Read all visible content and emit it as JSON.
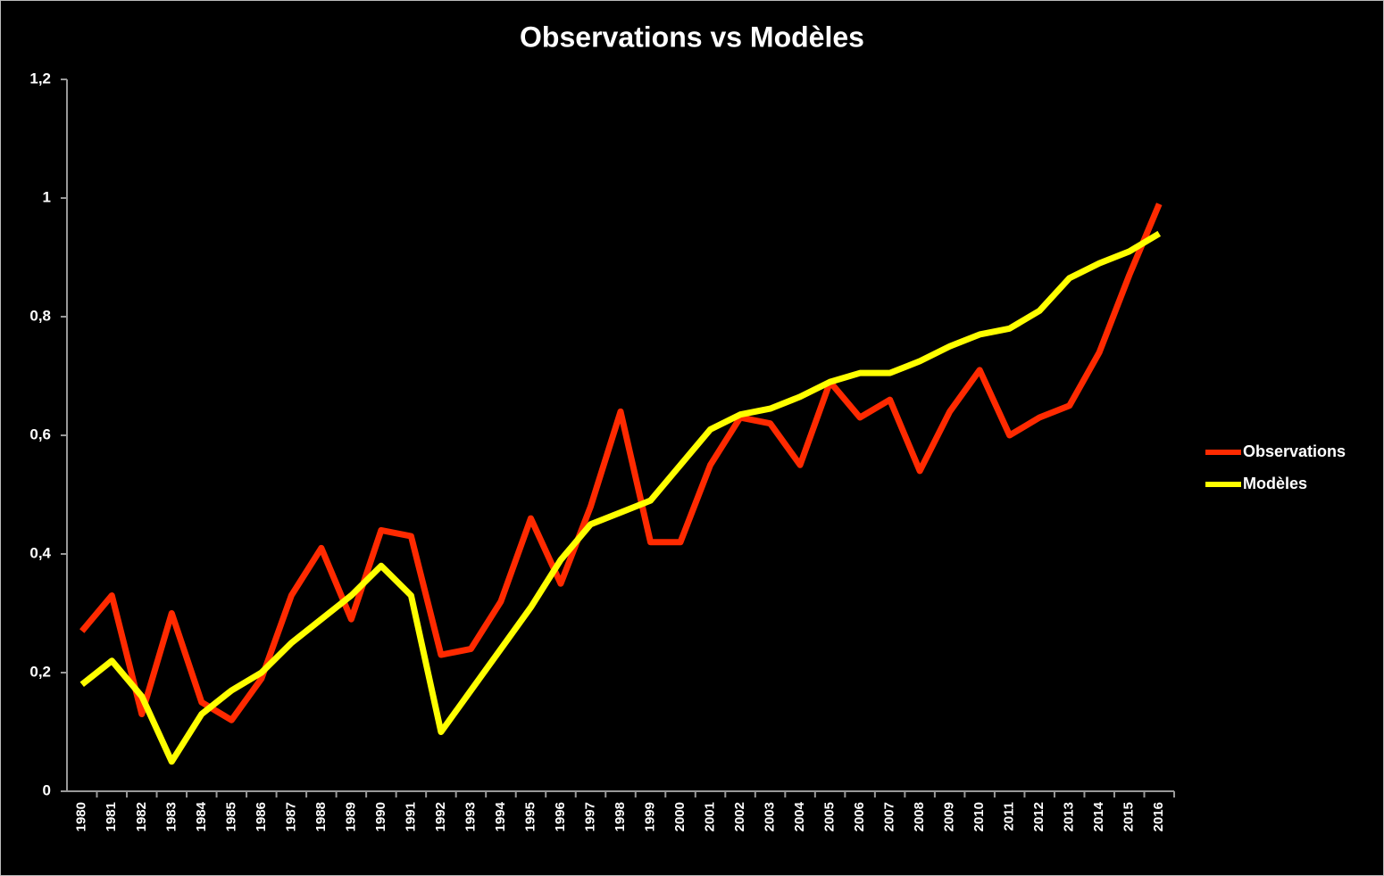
{
  "chart_data": {
    "type": "line",
    "title": "Observations vs Modèles",
    "categories": [
      "1980",
      "1981",
      "1982",
      "1983",
      "1984",
      "1985",
      "1986",
      "1987",
      "1988",
      "1989",
      "1990",
      "1991",
      "1992",
      "1993",
      "1994",
      "1995",
      "1996",
      "1997",
      "1998",
      "1999",
      "2000",
      "2001",
      "2002",
      "2003",
      "2004",
      "2005",
      "2006",
      "2007",
      "2008",
      "2009",
      "2010",
      "2011",
      "2012",
      "2013",
      "2014",
      "2015",
      "2016"
    ],
    "series": [
      {
        "name": "Observations",
        "color": "#ff2a00",
        "values": [
          0.27,
          0.33,
          0.13,
          0.3,
          0.15,
          0.12,
          0.19,
          0.33,
          0.41,
          0.29,
          0.44,
          0.43,
          0.23,
          0.24,
          0.32,
          0.46,
          0.35,
          0.48,
          0.64,
          0.42,
          0.42,
          0.55,
          0.63,
          0.62,
          0.55,
          0.69,
          0.63,
          0.66,
          0.54,
          0.64,
          0.71,
          0.6,
          0.63,
          0.65,
          0.74,
          0.87,
          0.99
        ]
      },
      {
        "name": "Modèles",
        "color": "#ffff00",
        "values": [
          0.18,
          0.22,
          0.16,
          0.05,
          0.13,
          0.17,
          0.2,
          0.25,
          0.29,
          0.33,
          0.38,
          0.33,
          0.1,
          0.17,
          0.24,
          0.31,
          0.39,
          0.45,
          0.47,
          0.49,
          0.55,
          0.61,
          0.635,
          0.645,
          0.665,
          0.69,
          0.705,
          0.705,
          0.725,
          0.75,
          0.77,
          0.78,
          0.81,
          0.865,
          0.89,
          0.91,
          0.94
        ]
      }
    ],
    "ylim": [
      0,
      1.2
    ],
    "yticks": [
      0,
      {
        "value": 0.2,
        "label": "0,2"
      },
      {
        "value": 0.4,
        "label": "0,4"
      },
      {
        "value": 0.6,
        "label": "0,6"
      },
      {
        "value": 0.8,
        "label": "0,8"
      },
      1,
      {
        "value": 1.2,
        "label": "1,2"
      }
    ],
    "legend": "right"
  }
}
